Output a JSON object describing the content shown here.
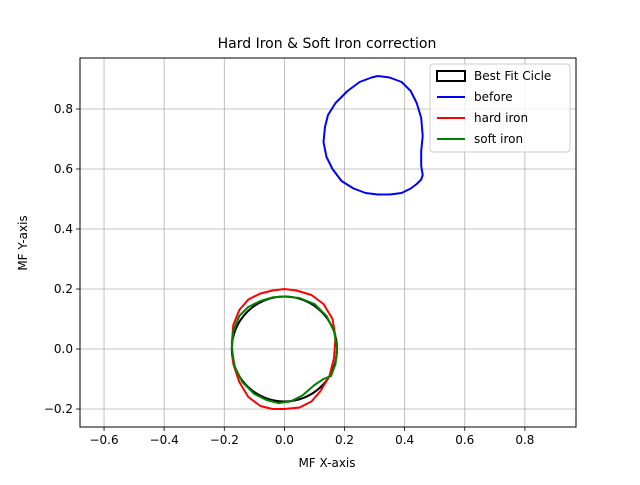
{
  "chart_data": {
    "type": "line",
    "title": "Hard Iron & Soft Iron correction",
    "xlabel": "MF X-axis",
    "ylabel": "MF Y-axis",
    "xlim": [
      -0.68,
      0.97
    ],
    "ylim": [
      -0.26,
      0.97
    ],
    "xticks": [
      -0.6,
      -0.4,
      -0.2,
      0.0,
      0.2,
      0.4,
      0.6,
      0.8
    ],
    "yticks": [
      -0.2,
      0.0,
      0.2,
      0.4,
      0.6,
      0.8
    ],
    "xtick_labels": [
      "−0.6",
      "−0.4",
      "−0.2",
      "0.0",
      "0.2",
      "0.4",
      "0.6",
      "0.8"
    ],
    "ytick_labels": [
      "−0.2",
      "0.0",
      "0.2",
      "0.4",
      "0.6",
      "0.8"
    ],
    "grid": true,
    "legend_position": "top-right",
    "series": [
      {
        "name": "Best Fit Cicle",
        "kind": "circle",
        "color": "#000000",
        "center": [
          0.0,
          0.0
        ],
        "radius": 0.175
      },
      {
        "name": "before",
        "color": "#0000ff",
        "x": [
          0.31,
          0.35,
          0.39,
          0.42,
          0.44,
          0.455,
          0.46,
          0.455,
          0.455,
          0.46,
          0.455,
          0.44,
          0.42,
          0.39,
          0.35,
          0.31,
          0.27,
          0.23,
          0.19,
          0.16,
          0.14,
          0.13,
          0.135,
          0.145,
          0.17,
          0.21,
          0.25,
          0.29,
          0.31
        ],
        "y": [
          0.91,
          0.905,
          0.89,
          0.86,
          0.82,
          0.77,
          0.71,
          0.66,
          0.61,
          0.58,
          0.565,
          0.55,
          0.535,
          0.52,
          0.515,
          0.515,
          0.52,
          0.535,
          0.56,
          0.6,
          0.64,
          0.69,
          0.74,
          0.78,
          0.82,
          0.86,
          0.89,
          0.905,
          0.91
        ]
      },
      {
        "name": "hard iron",
        "color": "#ff0000",
        "x": [
          0.0,
          0.04,
          0.09,
          0.13,
          0.16,
          0.17,
          0.165,
          0.15,
          0.12,
          0.09,
          0.05,
          0.0,
          -0.04,
          -0.08,
          -0.12,
          -0.15,
          -0.17,
          -0.175,
          -0.17,
          -0.15,
          -0.12,
          -0.08,
          -0.04,
          0.0
        ],
        "y": [
          0.2,
          0.195,
          0.18,
          0.15,
          0.1,
          0.04,
          -0.03,
          -0.09,
          -0.14,
          -0.175,
          -0.195,
          -0.2,
          -0.2,
          -0.19,
          -0.16,
          -0.11,
          -0.05,
          0.02,
          0.08,
          0.13,
          0.165,
          0.185,
          0.195,
          0.2
        ]
      },
      {
        "name": "soft iron",
        "color": "#008000",
        "x": [
          0.0,
          0.05,
          0.1,
          0.14,
          0.165,
          0.175,
          0.17,
          0.155,
          0.13,
          0.1,
          0.06,
          0.02,
          -0.02,
          -0.06,
          -0.1,
          -0.14,
          -0.165,
          -0.175,
          -0.17,
          -0.15,
          -0.12,
          -0.08,
          -0.04,
          0.0
        ],
        "y": [
          0.175,
          0.17,
          0.15,
          0.11,
          0.06,
          0.0,
          -0.05,
          -0.09,
          -0.1,
          -0.12,
          -0.155,
          -0.175,
          -0.18,
          -0.17,
          -0.15,
          -0.11,
          -0.06,
          0.0,
          0.06,
          0.11,
          0.14,
          0.16,
          0.172,
          0.175
        ]
      }
    ]
  }
}
